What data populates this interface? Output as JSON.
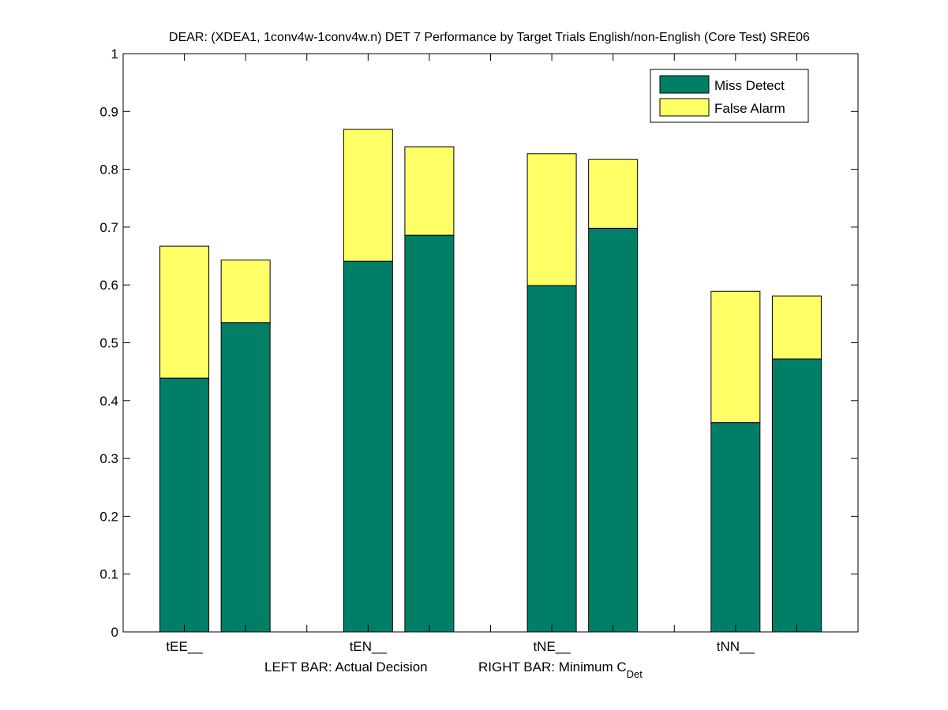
{
  "chart_data": {
    "type": "bar",
    "stacked": true,
    "title": "DEAR: (XDEA1, 1conv4w-1conv4w.n) DET 7 Performance by Target Trials English/non-English (Core Test) SRE06",
    "xlabel": {
      "left": "LEFT BAR: Actual Decision",
      "right": "RIGHT BAR: Minimum C",
      "right_subscript": "Det"
    },
    "ylabel": "",
    "ylim": [
      0,
      1
    ],
    "yticks": [
      "0",
      "0.1",
      "0.2",
      "0.3",
      "0.4",
      "0.5",
      "0.6",
      "0.7",
      "0.8",
      "0.9",
      "1"
    ],
    "grid": false,
    "legend_position": "top-right",
    "categories": [
      "tEE__",
      "tEN__",
      "tNE__",
      "tNN__"
    ],
    "bar_roles": [
      "Actual Decision",
      "Minimum C_Det"
    ],
    "series": [
      {
        "name": "Miss Detect",
        "color": "#007f66",
        "actual": [
          0.439,
          0.641,
          0.599,
          0.362
        ],
        "minimum": [
          0.535,
          0.686,
          0.698,
          0.472
        ]
      },
      {
        "name": "False Alarm",
        "color": "#ffff66",
        "actual": [
          0.228,
          0.228,
          0.228,
          0.227
        ],
        "minimum": [
          0.108,
          0.153,
          0.119,
          0.109
        ]
      }
    ],
    "totals": {
      "actual": [
        0.667,
        0.869,
        0.827,
        0.589
      ],
      "minimum": [
        0.643,
        0.839,
        0.817,
        0.581
      ]
    }
  }
}
